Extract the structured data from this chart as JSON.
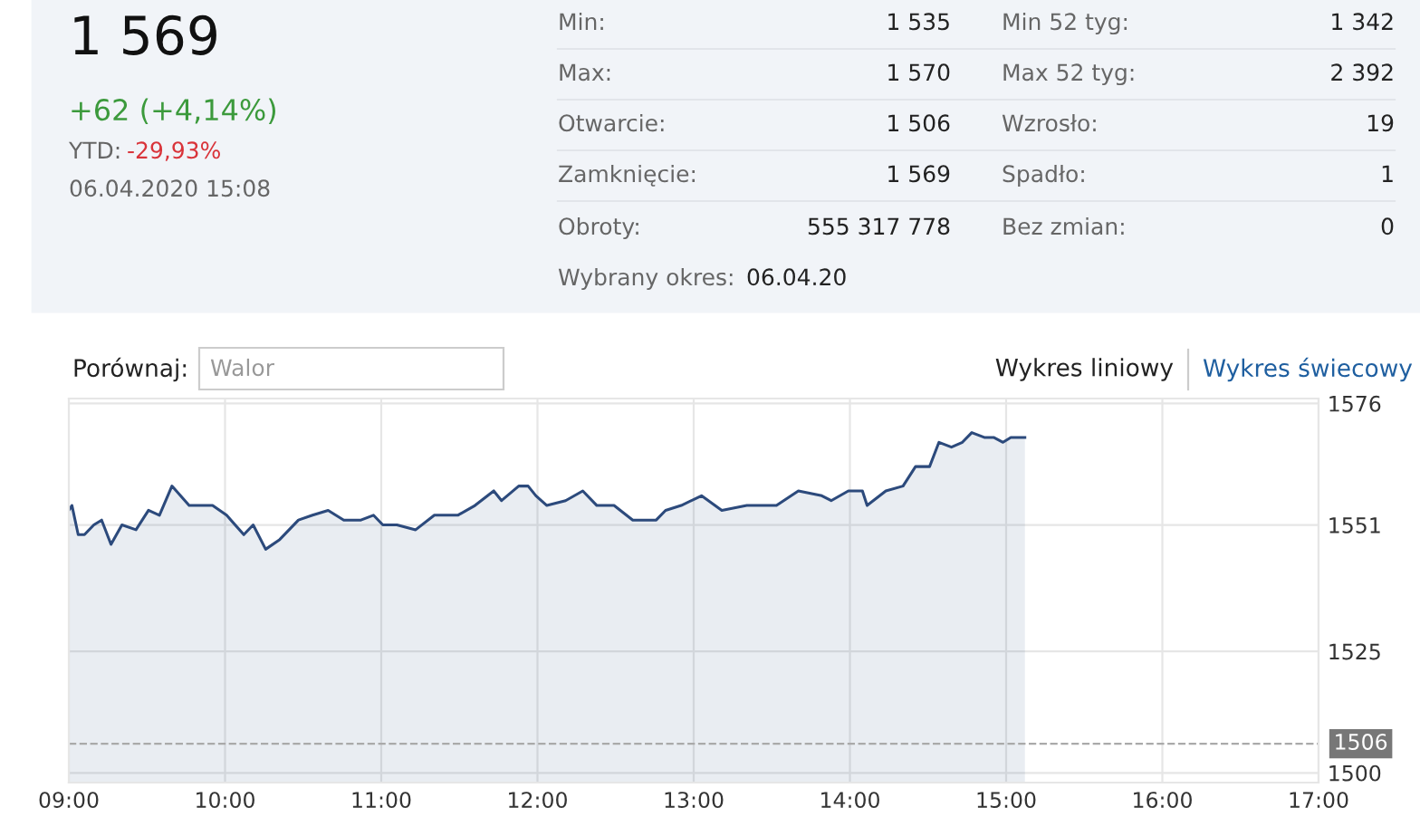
{
  "chart_data": {
    "type": "area",
    "title": "1 569",
    "annotations": [
      "+62 (+4,14%)",
      "YTD: ",
      "-29,93%",
      "06.04.2020 15:08",
      "Min:",
      "1 535",
      "Min 52 tyg:",
      "1 342",
      "Max:",
      "1 570",
      "Max 52 tyg:",
      "2 392",
      "Otwarcie:",
      "1 506",
      "Wzrosło:",
      "19",
      "Zamknięcie:",
      "1 569",
      "Spadło:",
      "1",
      "Obroty:",
      "555 317 778",
      "Bez zmian:",
      "0",
      "Wybrany okres:",
      "06.04.20",
      "Porównaj:",
      "Walor",
      "Wykres liniowy",
      "Wykres świecowy"
    ],
    "x": [
      9.0,
      9.02,
      9.06,
      9.1,
      9.16,
      9.21,
      9.27,
      9.34,
      9.43,
      9.51,
      9.58,
      9.66,
      9.77,
      9.92,
      10.01,
      10.12,
      10.18,
      10.26,
      10.35,
      10.47,
      10.56,
      10.66,
      10.76,
      10.87,
      10.95,
      11.01,
      11.1,
      11.22,
      11.34,
      11.49,
      11.6,
      11.72,
      11.77,
      11.88,
      11.94,
      11.99,
      12.06,
      12.18,
      12.29,
      12.38,
      12.49,
      12.61,
      12.76,
      12.82,
      12.92,
      13.05,
      13.18,
      13.34,
      13.45,
      13.53,
      13.67,
      13.82,
      13.88,
      13.99,
      14.08,
      14.11,
      14.23,
      14.34,
      14.42,
      14.51,
      14.57,
      14.65,
      14.72,
      14.78,
      14.86,
      14.92,
      14.98,
      15.03,
      15.12
    ],
    "series": [
      {
        "color": "#2c4a7c",
        "values": [
          1554,
          1555,
          1549,
          1549,
          1551,
          1552,
          1547,
          1551,
          1550,
          1554,
          1553,
          1559,
          1555,
          1555,
          1553,
          1549,
          1551,
          1546,
          1548,
          1552,
          1553,
          1554,
          1552,
          1552,
          1553,
          1551,
          1551,
          1550,
          1553,
          1553,
          1555,
          1558,
          1556,
          1559,
          1559,
          1557,
          1555,
          1556,
          1558,
          1555,
          1555,
          1552,
          1552,
          1554,
          1555,
          1557,
          1554,
          1555,
          1555,
          1555,
          1558,
          1557,
          1556,
          1558,
          1558,
          1555,
          1558,
          1559,
          1563,
          1563,
          1568,
          1567,
          1568,
          1570,
          1569,
          1569,
          1568,
          1569,
          1569
        ]
      }
    ],
    "xlim": [
      9,
      17
    ],
    "xticks": [
      {
        "value": 9,
        "label": "09:00"
      },
      {
        "value": 10,
        "label": "10:00"
      },
      {
        "value": 11,
        "label": "11:00"
      },
      {
        "value": 12,
        "label": "12:00"
      },
      {
        "value": 13,
        "label": "13:00"
      },
      {
        "value": 14,
        "label": "14:00"
      },
      {
        "value": 15,
        "label": "15:00"
      },
      {
        "value": 16,
        "label": "16:00"
      },
      {
        "value": 17,
        "label": "17:00"
      }
    ],
    "ylim": [
      1498,
      1577
    ],
    "yticks": [
      1500,
      1525,
      1551,
      1576
    ],
    "ref_lines": [
      {
        "axis": "y",
        "value": 1506,
        "label": "1506",
        "color": "#aaaaaa",
        "line_style": "dashed"
      }
    ],
    "grid": true,
    "marker": "none",
    "line_style": "solid"
  }
}
